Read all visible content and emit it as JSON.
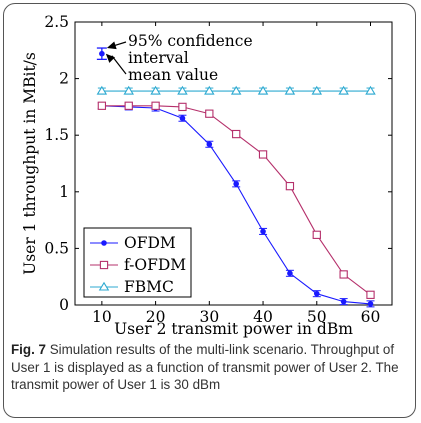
{
  "chart_data": {
    "type": "line",
    "xlabel": "User 2 transmit power in dBm",
    "ylabel": "User 1 throughput in MBit/s",
    "xlim": [
      5,
      64
    ],
    "ylim": [
      0,
      2.5
    ],
    "x_ticks": [
      "10",
      "20",
      "30",
      "40",
      "50",
      "60"
    ],
    "y_ticks": [
      "0",
      "0.5",
      "1",
      "1.5",
      "2",
      "2.5"
    ],
    "grid": false,
    "legend_position": "bottom-left",
    "x": [
      10,
      15,
      20,
      25,
      30,
      35,
      40,
      45,
      50,
      55,
      60
    ],
    "series": [
      {
        "name": "OFDM",
        "color": "#1a1aff",
        "marker": "filled-circle",
        "values": [
          1.76,
          1.75,
          1.74,
          1.65,
          1.42,
          1.07,
          0.65,
          0.28,
          0.1,
          0.03,
          0.01
        ]
      },
      {
        "name": "f-OFDM",
        "color": "#b5306b",
        "marker": "open-square",
        "values": [
          1.76,
          1.76,
          1.76,
          1.75,
          1.69,
          1.51,
          1.33,
          1.05,
          0.62,
          0.27,
          0.09
        ]
      },
      {
        "name": "FBMC",
        "color": "#2eaad1",
        "marker": "open-triangle",
        "values": [
          1.89,
          1.89,
          1.89,
          1.89,
          1.89,
          1.89,
          1.89,
          1.89,
          1.89,
          1.89,
          1.89
        ]
      }
    ],
    "annotation": {
      "example_x": 10,
      "example_mean": 2.22,
      "example_ci": [
        2.17,
        2.27
      ],
      "ci_label_line1": "95% confidence",
      "ci_label_line2": "interval",
      "mean_label": "mean value"
    }
  },
  "caption": {
    "figure_label": "Fig. 7",
    "text": " Simulation results of the multi-link scenario. Throughput of User 1 is displayed as a function of transmit power of User 2. The transmit power of User 1 is 30 dBm"
  }
}
